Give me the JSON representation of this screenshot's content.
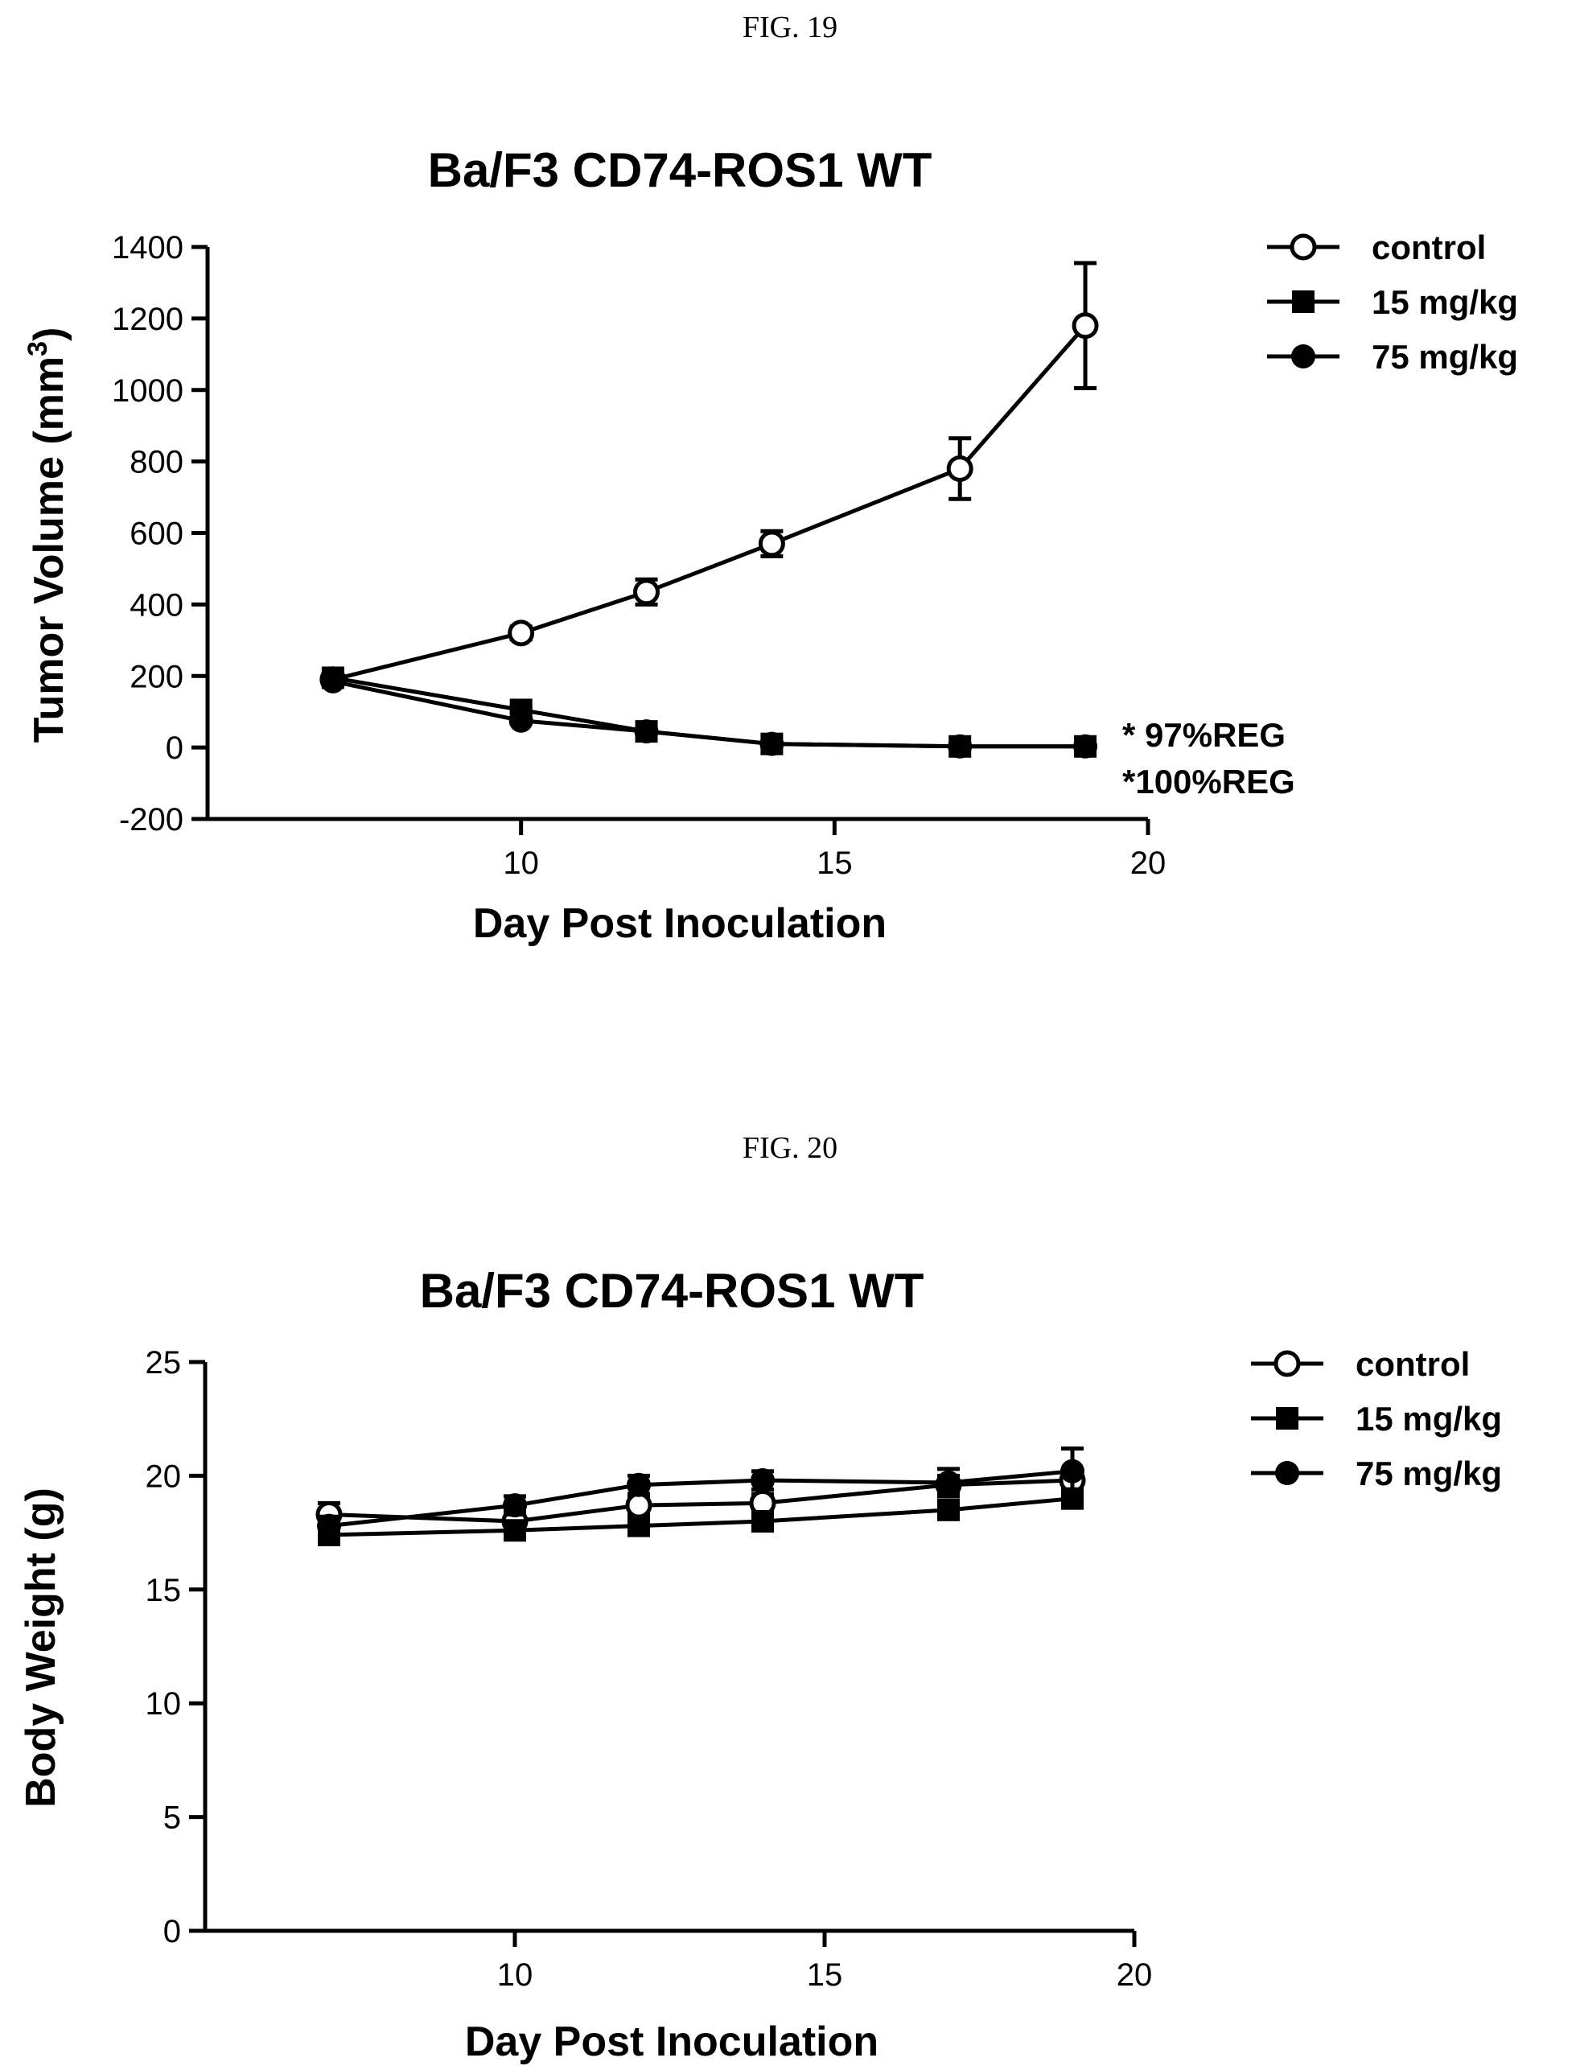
{
  "figures": [
    {
      "label": "FIG. 19"
    },
    {
      "label": "FIG. 20"
    }
  ],
  "chart_data": [
    {
      "type": "line",
      "title": "Ba/F3 CD74-ROS1 WT",
      "xlabel": "Day Post Inoculation",
      "ylabel": "Tumor Volume (mm",
      "ylabel_sup": "3",
      "ylabel_close": ")",
      "xlim": [
        5,
        20
      ],
      "ylim": [
        -200,
        1400
      ],
      "xticks": [
        10,
        15,
        20
      ],
      "yticks": [
        -200,
        0,
        200,
        400,
        600,
        800,
        1000,
        1200,
        1400
      ],
      "legend_position": "top-right",
      "x": [
        7,
        10,
        12,
        14,
        17,
        19
      ],
      "series": [
        {
          "name": "control",
          "marker": "open-circle",
          "values": [
            190,
            320,
            435,
            570,
            780,
            1180
          ],
          "error": [
            15,
            18,
            35,
            35,
            85,
            175
          ]
        },
        {
          "name": "15 mg/kg",
          "marker": "filled-square",
          "values": [
            195,
            105,
            45,
            10,
            3,
            3
          ],
          "error": [
            10,
            8,
            6,
            4,
            2,
            2
          ]
        },
        {
          "name": "75 mg/kg",
          "marker": "filled-circle",
          "values": [
            185,
            75,
            45,
            10,
            3,
            3
          ],
          "error": [
            10,
            8,
            6,
            4,
            2,
            2
          ]
        }
      ],
      "annotations": [
        "* 97%REG",
        "*100%REG"
      ]
    },
    {
      "type": "line",
      "title": "Ba/F3 CD74-ROS1 WT",
      "xlabel": "Day Post Inoculation",
      "ylabel": "Body Weight (g)",
      "xlim": [
        5,
        20
      ],
      "ylim": [
        0,
        25
      ],
      "xticks": [
        10,
        15,
        20
      ],
      "yticks": [
        0,
        5,
        10,
        15,
        20,
        25
      ],
      "legend_position": "top-right",
      "x": [
        7,
        10,
        12,
        14,
        17,
        19
      ],
      "series": [
        {
          "name": "control",
          "marker": "open-circle",
          "values": [
            18.3,
            18.0,
            18.7,
            18.8,
            19.6,
            19.8
          ],
          "error": [
            0.5,
            0.4,
            0.4,
            0.4,
            0.4,
            0.5
          ]
        },
        {
          "name": "15 mg/kg",
          "marker": "filled-square",
          "values": [
            17.4,
            17.6,
            17.8,
            18.0,
            18.5,
            19.0
          ],
          "error": [
            0.3,
            0.3,
            0.3,
            0.3,
            0.3,
            0.3
          ]
        },
        {
          "name": "75 mg/kg",
          "marker": "filled-circle",
          "values": [
            17.8,
            18.7,
            19.6,
            19.8,
            19.7,
            20.2
          ],
          "error": [
            0.4,
            0.4,
            0.4,
            0.4,
            0.6,
            1.0
          ]
        }
      ]
    }
  ]
}
